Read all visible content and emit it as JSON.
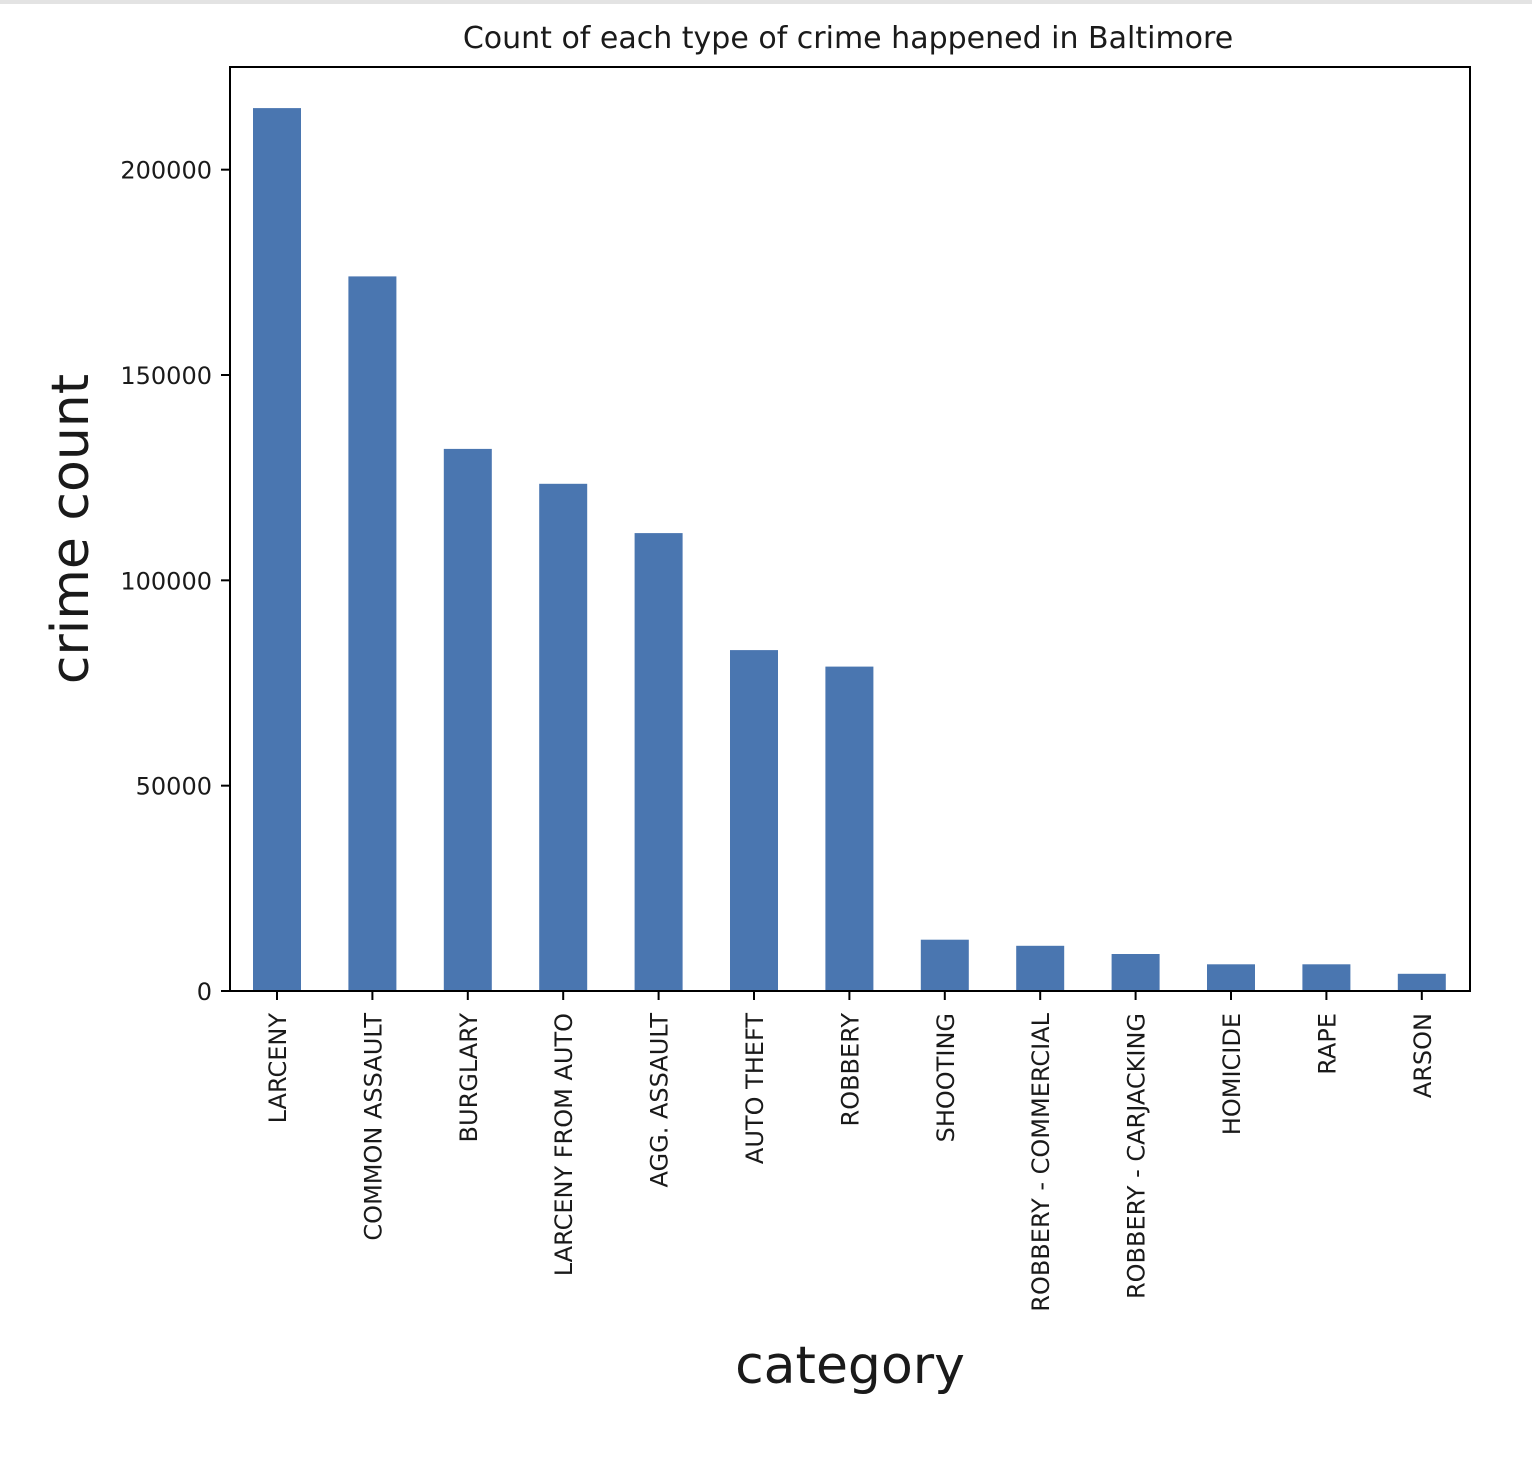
{
  "chart_data": {
    "type": "bar",
    "title": "Count of each type of crime happened in Baltimore",
    "xlabel": "category",
    "ylabel": "crime count",
    "categories": [
      "LARCENY",
      "COMMON ASSAULT",
      "BURGLARY",
      "LARCENY FROM AUTO",
      "AGG. ASSAULT",
      "AUTO THEFT",
      "ROBBERY",
      "SHOOTING",
      "ROBBERY - COMMERCIAL",
      "ROBBERY - CARJACKING",
      "HOMICIDE",
      "RAPE",
      "ARSON"
    ],
    "values": [
      215000,
      174000,
      132000,
      123500,
      111500,
      83000,
      79000,
      12500,
      11000,
      9000,
      6500,
      6500,
      4200
    ],
    "ylim": [
      0,
      225000
    ],
    "yticks": [
      0,
      50000,
      100000,
      150000,
      200000
    ],
    "ytick_labels": [
      "0",
      "50000",
      "100000",
      "150000",
      "200000"
    ],
    "grid": false,
    "legend": "none",
    "bar_color": "#4a76b0"
  }
}
